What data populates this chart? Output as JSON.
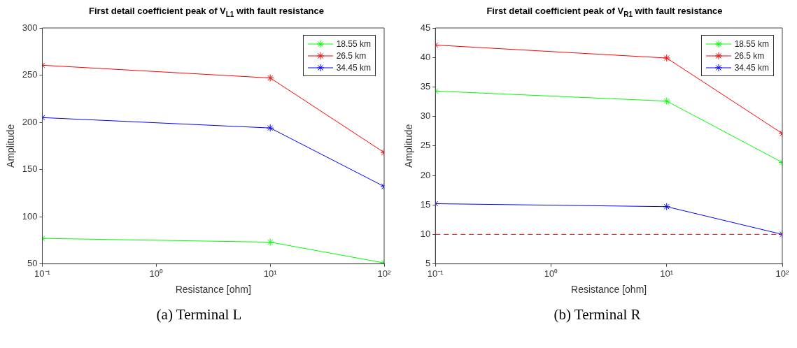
{
  "chart_data": [
    {
      "type": "line",
      "title": "First detail coefficient peak of V$_{L1}$ with fault resistance",
      "xlabel": "Resistance [ohm]",
      "ylabel": "Amplitude",
      "log": "x",
      "x": [
        0.1,
        10,
        100
      ],
      "series": [
        {
          "name": "18.55 km",
          "color": "#00ff00",
          "values": [
            77,
            73,
            51
          ]
        },
        {
          "name": "26.5 km",
          "color": "#ff0000",
          "values": [
            260.5,
            247,
            168
          ]
        },
        {
          "name": "34.45 km",
          "color": "#0000ff",
          "values": [
            205,
            194,
            132
          ]
        }
      ],
      "xlim": [
        0.1,
        100
      ],
      "xticks": [
        {
          "value": 0.1,
          "label": "10⁻¹"
        },
        {
          "value": 1,
          "label": "10⁰"
        },
        {
          "value": 10,
          "label": "10¹"
        },
        {
          "value": 100,
          "label": "10²"
        }
      ],
      "ylim": [
        50,
        300
      ],
      "yticks": [
        50,
        100,
        150,
        200,
        250,
        300
      ],
      "grid": false,
      "legend": "top right",
      "marker": "cross",
      "line_style": "solid",
      "annotations": [
        "(a) Terminal L"
      ]
    },
    {
      "type": "line",
      "title": "First detail coefficient peak of V$_{R1}$ with fault resistance",
      "xlabel": "Resistance [ohm]",
      "ylabel": "Amplitude",
      "log": "x",
      "x": [
        0.1,
        10,
        100
      ],
      "series": [
        {
          "name": "18.55 km",
          "color": "#00ff00",
          "values": [
            34.3,
            32.6,
            22.2
          ]
        },
        {
          "name": "26.5 km",
          "color": "#ff0000",
          "values": [
            42.1,
            39.9,
            27.1
          ]
        },
        {
          "name": "34.45 km",
          "color": "#0000ff",
          "values": [
            15.2,
            14.7,
            10
          ]
        }
      ],
      "xlim": [
        0.1,
        100
      ],
      "xticks": [
        {
          "value": 0.1,
          "label": "10⁻¹"
        },
        {
          "value": 1,
          "label": "10⁰"
        },
        {
          "value": 10,
          "label": "10¹"
        },
        {
          "value": 100,
          "label": "10²"
        }
      ],
      "ylim": [
        5,
        45
      ],
      "yticks": [
        5,
        10,
        15,
        20,
        25,
        30,
        35,
        40,
        45
      ],
      "ref_lines": [
        {
          "axis": "y",
          "value": 10,
          "color": "#ff0000",
          "line_style": "dashed"
        }
      ],
      "grid": false,
      "legend": "top right",
      "marker": "cross",
      "line_style": "solid",
      "annotations": [
        "(b) Terminal R"
      ]
    }
  ]
}
